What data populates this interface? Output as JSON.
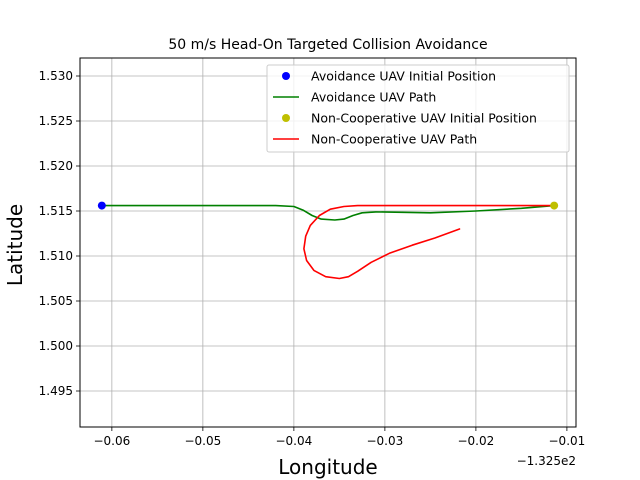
{
  "chart_data": {
    "type": "line",
    "title": "50 m/s Head-On Targeted Collision Avoidance",
    "xlabel": "Longitude",
    "ylabel": "Latitude",
    "x_offset_label": "−1.325e2",
    "xlim": [
      -0.0635,
      -0.009
    ],
    "ylim": [
      1.491,
      1.532
    ],
    "x_ticks": [
      -0.06,
      -0.05,
      -0.04,
      -0.03,
      -0.02,
      -0.01
    ],
    "x_tick_labels": [
      "−0.06",
      "−0.05",
      "−0.04",
      "−0.03",
      "−0.02",
      "−0.01"
    ],
    "y_ticks": [
      1.495,
      1.5,
      1.505,
      1.51,
      1.515,
      1.52,
      1.525,
      1.53
    ],
    "y_tick_labels": [
      "1.495",
      "1.500",
      "1.505",
      "1.510",
      "1.515",
      "1.520",
      "1.525",
      "1.530"
    ],
    "grid": true,
    "legend_position": "top-right",
    "series": [
      {
        "name": "Avoidance UAV Initial Position",
        "kind": "point",
        "color": "#0000ff",
        "points": [
          [
            -0.0611,
            1.5156
          ]
        ]
      },
      {
        "name": "Avoidance UAV Path",
        "kind": "line",
        "color": "#008000",
        "points": [
          [
            -0.0611,
            1.5156
          ],
          [
            -0.05,
            1.5156
          ],
          [
            -0.042,
            1.5156
          ],
          [
            -0.04,
            1.5155
          ],
          [
            -0.039,
            1.5151
          ],
          [
            -0.038,
            1.5145
          ],
          [
            -0.037,
            1.5141
          ],
          [
            -0.0355,
            1.514
          ],
          [
            -0.0345,
            1.5141
          ],
          [
            -0.0335,
            1.5145
          ],
          [
            -0.0325,
            1.5148
          ],
          [
            -0.031,
            1.5149
          ],
          [
            -0.025,
            1.5148
          ],
          [
            -0.02,
            1.515
          ],
          [
            -0.015,
            1.5153
          ],
          [
            -0.0114,
            1.5156
          ]
        ]
      },
      {
        "name": "Non-Cooperative UAV Initial Position",
        "kind": "point",
        "color": "#bfbf00",
        "points": [
          [
            -0.0114,
            1.5156
          ]
        ]
      },
      {
        "name": "Non-Cooperative UAV Path",
        "kind": "line",
        "color": "#ff0000",
        "points": [
          [
            -0.0114,
            1.5156
          ],
          [
            -0.02,
            1.5156
          ],
          [
            -0.03,
            1.5156
          ],
          [
            -0.033,
            1.5156
          ],
          [
            -0.0345,
            1.5155
          ],
          [
            -0.036,
            1.5152
          ],
          [
            -0.0372,
            1.5145
          ],
          [
            -0.0382,
            1.5134
          ],
          [
            -0.0387,
            1.5122
          ],
          [
            -0.0389,
            1.5108
          ],
          [
            -0.0386,
            1.5095
          ],
          [
            -0.0378,
            1.5084
          ],
          [
            -0.0365,
            1.5077
          ],
          [
            -0.035,
            1.5075
          ],
          [
            -0.034,
            1.5077
          ],
          [
            -0.033,
            1.5083
          ],
          [
            -0.0315,
            1.5093
          ],
          [
            -0.0295,
            1.5103
          ],
          [
            -0.027,
            1.5112
          ],
          [
            -0.0245,
            1.512
          ],
          [
            -0.0218,
            1.513
          ]
        ]
      }
    ]
  }
}
